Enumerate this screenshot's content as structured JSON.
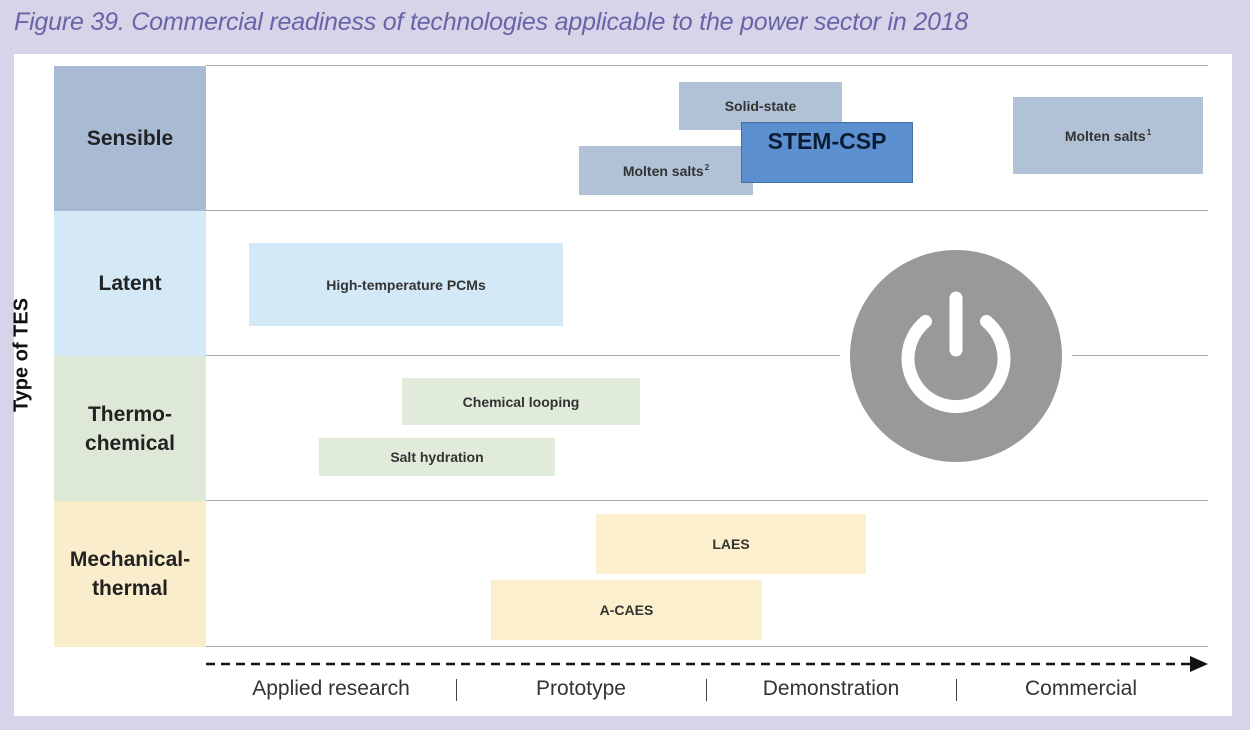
{
  "title": "Figure 39. Commercial readiness of technologies applicable to the power sector in 2018",
  "y_axis_label": "Type of TES",
  "categories": {
    "sensible": "Sensible",
    "latent": "Latent",
    "thermo_line1": "Thermo-",
    "thermo_line2": "chemical",
    "mech_line1": "Mechanical-",
    "mech_line2": "thermal"
  },
  "technologies": {
    "solid_state": "Solid-state",
    "stem_csp": "STEM-CSP",
    "molten_salts_2": "Molten salts",
    "molten_salts_2_note": "2",
    "molten_salts_1": "Molten salts",
    "molten_salts_1_note": "1",
    "high_temp_pcms": "High-temperature PCMs",
    "chemical_looping": "Chemical looping",
    "salt_hydration": "Salt hydration",
    "laes": "LAES",
    "a_caes": "A-CAES"
  },
  "stages": [
    "Applied research",
    "Prototype",
    "Demonstration",
    "Commercial"
  ],
  "icons": {
    "power": "power-icon",
    "arrow": "dashed-arrow"
  },
  "colors": {
    "title": "#6b63a8",
    "sensible": "#a9bbd2",
    "latent": "#d4e8f6",
    "thermochemical": "#dde8d6",
    "mechanical": "#faedcb",
    "stem_csp": "#5b8fcf",
    "power_icon": "#999999"
  }
}
